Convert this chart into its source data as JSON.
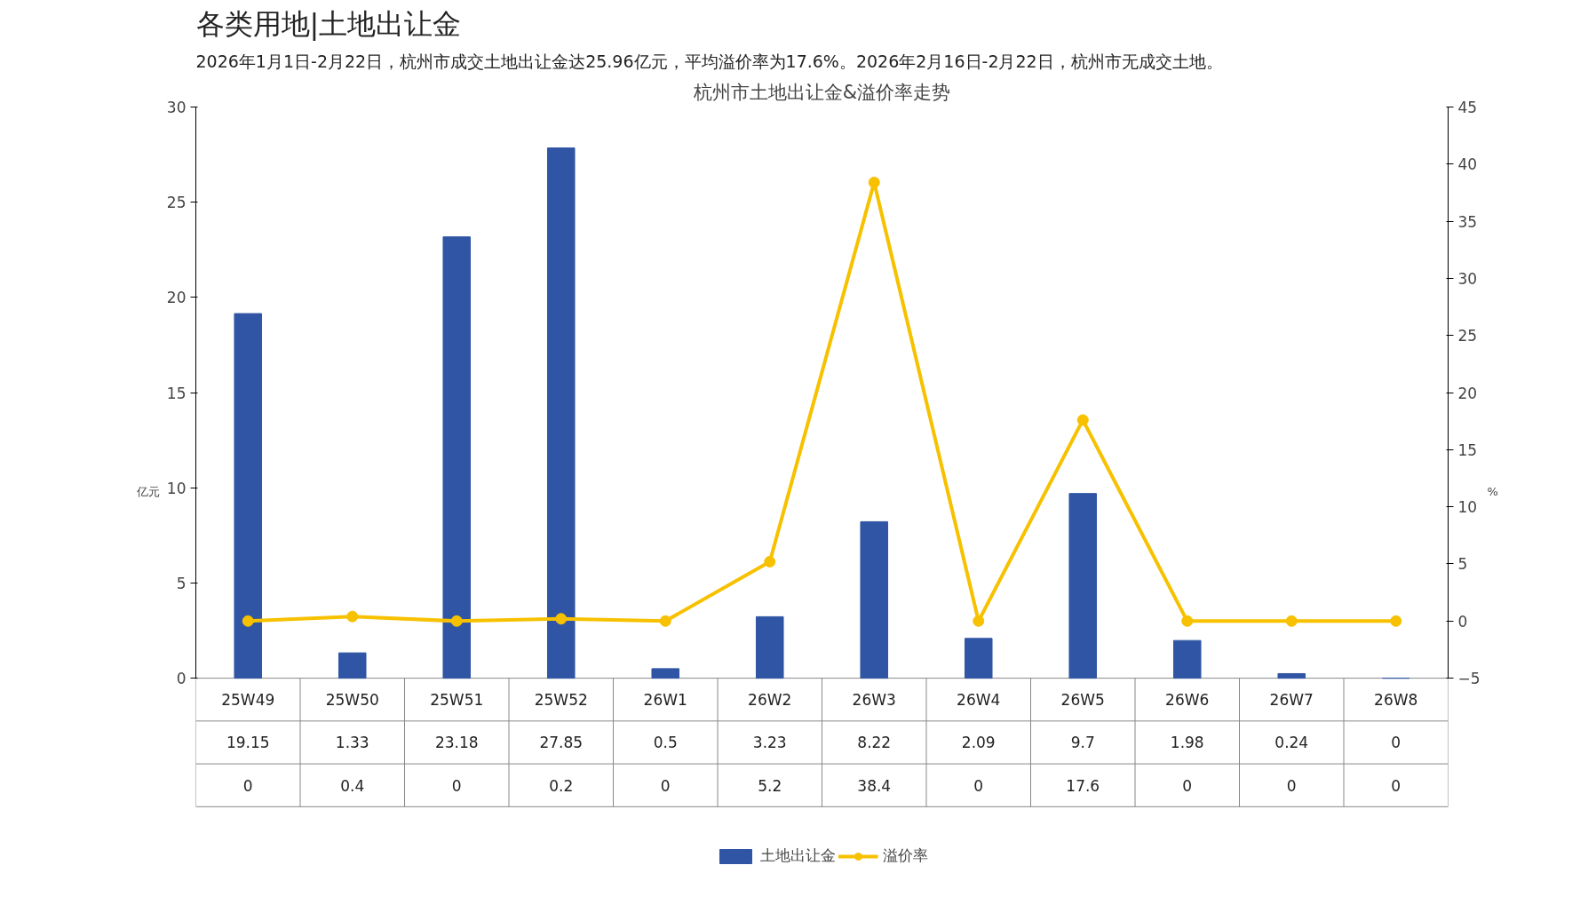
{
  "chart_data": {
    "type": "bar",
    "title": "杭州市土地出让金&溢价率走势",
    "annotations": [
      "各类用地|土地出让金",
      "2026年1月1日-2月22日，杭州市成交土地出让金达25.96亿元，平均溢价率为17.6%。2026年2月16日-2月22日，杭州市无成交土地。"
    ],
    "ylabel": "亿元",
    "y2label": "%",
    "categories": [
      "25W49",
      "25W50",
      "25W51",
      "25W52",
      "26W1",
      "26W2",
      "26W3",
      "26W4",
      "26W5",
      "26W6",
      "26W7",
      "26W8"
    ],
    "series": [
      {
        "name": "土地出让金",
        "color": "#2f55a4",
        "values": [
          19.15,
          1.33,
          23.18,
          27.85,
          0.5,
          3.23,
          8.22,
          2.09,
          9.7,
          1.98,
          0.24,
          0
        ]
      },
      {
        "name": "溢价率",
        "type": "line",
        "axis": "y2",
        "color": "#f7c100",
        "values": [
          0,
          0.4,
          0,
          0.2,
          0,
          5.2,
          38.4,
          0,
          17.6,
          0,
          0,
          0
        ]
      }
    ],
    "ylim": [
      0,
      30
    ],
    "yticks": [
      0,
      5,
      10,
      15,
      20,
      25,
      30
    ],
    "y2lim": [
      -5,
      45
    ],
    "y2ticks": [
      -5,
      0,
      5,
      10,
      15,
      20,
      25,
      30,
      35,
      40,
      45
    ],
    "data_labels": true,
    "grid": false,
    "legend": "bottom",
    "marker": "circle",
    "line_style": "solid"
  }
}
